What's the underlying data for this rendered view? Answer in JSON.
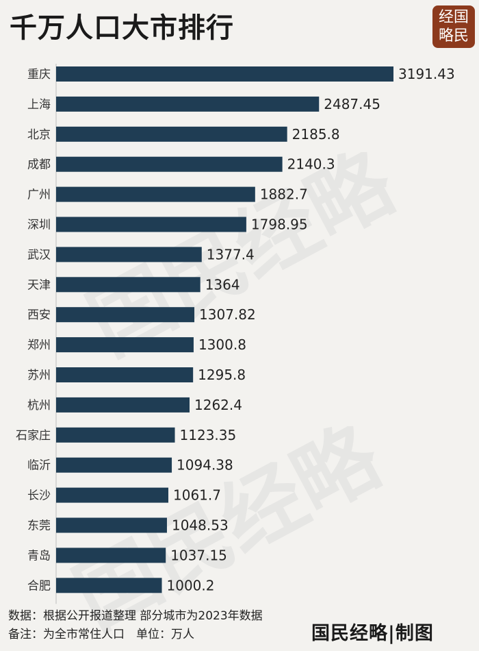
{
  "header": {
    "title": "千万人口大市排行",
    "logo_text": "经国\n略民"
  },
  "watermark": {
    "text": "国民经略"
  },
  "chart_data": {
    "type": "bar",
    "orientation": "horizontal",
    "title": "千万人口大市排行",
    "categories": [
      "重庆",
      "上海",
      "北京",
      "成都",
      "广州",
      "深圳",
      "武汉",
      "天津",
      "西安",
      "郑州",
      "苏州",
      "杭州",
      "石家庄",
      "临沂",
      "长沙",
      "东莞",
      "青岛",
      "合肥"
    ],
    "values": [
      3191.43,
      2487.45,
      2185.8,
      2140.3,
      1882.7,
      1798.95,
      1377.4,
      1364,
      1307.82,
      1300.8,
      1295.8,
      1262.4,
      1123.35,
      1094.38,
      1061.7,
      1048.53,
      1037.15,
      1000.2
    ],
    "value_labels": [
      "3191.43",
      "2487.45",
      "2185.8",
      "2140.3",
      "1882.7",
      "1798.95",
      "1377.4",
      "1364",
      "1307.82",
      "1300.8",
      "1295.8",
      "1262.4",
      "1123.35",
      "1094.38",
      "1061.7",
      "1048.53",
      "1037.15",
      "1000.2"
    ],
    "bar_color": "#1f3d54",
    "xlim": [
      0,
      3191.43
    ],
    "grid": false,
    "legend": "none"
  },
  "footer": {
    "source": "数据：根据公开报道整理 部分城市为2023年数据",
    "note": "备注：为全市常住人口　单位：万人",
    "brand": "国民经略|制图"
  }
}
